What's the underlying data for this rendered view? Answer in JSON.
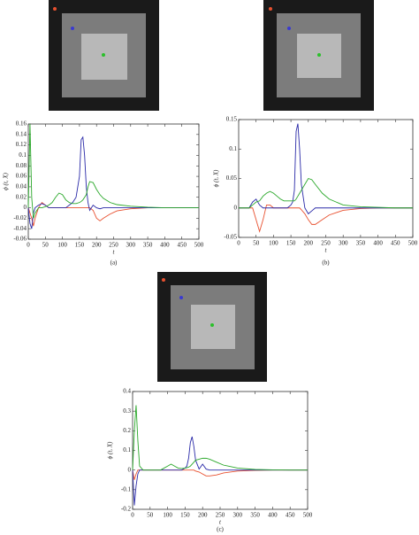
{
  "chart_data": [
    {
      "type": "line",
      "caption": "(a)",
      "x_label": "t",
      "y_label": "ϕ (t, X)",
      "x": [
        0,
        5,
        10,
        15,
        20,
        30,
        40,
        50,
        60,
        70,
        80,
        90,
        100,
        110,
        120,
        130,
        140,
        150,
        155,
        160,
        165,
        170,
        175,
        180,
        190,
        200,
        210,
        220,
        240,
        260,
        300,
        350,
        400,
        450,
        500
      ],
      "xlim": [
        0,
        500
      ],
      "xticks": [
        0,
        50,
        100,
        150,
        200,
        250,
        300,
        350,
        400,
        450,
        500
      ],
      "ylim": [
        -0.06,
        0.16
      ],
      "yticks": [
        -0.06,
        -0.04,
        -0.02,
        0,
        0.02,
        0.04,
        0.06,
        0.08,
        0.1,
        0.12,
        0.14,
        0.16
      ],
      "series": [
        {
          "color": "#e8502f",
          "values": [
            0,
            -0.01,
            -0.02,
            -0.035,
            -0.02,
            0,
            0.01,
            0.005,
            0,
            0,
            0,
            0,
            0,
            0,
            0,
            0,
            0,
            0,
            0,
            0,
            0,
            0,
            0,
            0,
            -0.005,
            -0.02,
            -0.025,
            -0.02,
            -0.012,
            -0.006,
            -0.002,
            0,
            0,
            0,
            0
          ]
        },
        {
          "color": "#2a2aa8",
          "values": [
            0,
            -0.03,
            -0.04,
            -0.01,
            0,
            0.005,
            0.008,
            0.005,
            0,
            0,
            0,
            0,
            0,
            0,
            0.005,
            0.01,
            0.02,
            0.06,
            0.13,
            0.135,
            0.1,
            0.04,
            0.01,
            -0.005,
            0.005,
            0,
            -0.002,
            0,
            0,
            0,
            0,
            0,
            0,
            0,
            0
          ]
        },
        {
          "color": "#2aa82a",
          "values": [
            0,
            0.16,
            0.02,
            -0.02,
            -0.01,
            0,
            0,
            0.002,
            0.005,
            0.01,
            0.02,
            0.028,
            0.025,
            0.015,
            0.01,
            0.008,
            0.008,
            0.01,
            0.012,
            0.015,
            0.02,
            0.025,
            0.04,
            0.05,
            0.048,
            0.035,
            0.025,
            0.018,
            0.01,
            0.006,
            0.003,
            0.001,
            0,
            0,
            0
          ]
        }
      ]
    },
    {
      "type": "line",
      "caption": "(b)",
      "x_label": "t",
      "y_label": "ϕ (t, X)",
      "x": [
        0,
        5,
        10,
        15,
        20,
        30,
        40,
        50,
        60,
        70,
        80,
        90,
        100,
        110,
        120,
        130,
        140,
        150,
        155,
        160,
        165,
        170,
        175,
        180,
        190,
        200,
        210,
        220,
        240,
        260,
        300,
        350,
        400,
        450,
        500
      ],
      "xlim": [
        0,
        500
      ],
      "xticks": [
        0,
        50,
        100,
        150,
        200,
        250,
        300,
        350,
        400,
        450,
        500
      ],
      "ylim": [
        -0.05,
        0.15
      ],
      "yticks": [
        -0.05,
        0,
        0.05,
        0.1,
        0.15
      ],
      "series": [
        {
          "color": "#e8502f",
          "values": [
            0,
            0,
            0,
            0,
            0,
            0,
            0,
            -0.02,
            -0.04,
            -0.02,
            0.005,
            0.005,
            0,
            0,
            0,
            0,
            0,
            0,
            0,
            0,
            0,
            0,
            0,
            -0.003,
            -0.01,
            -0.02,
            -0.028,
            -0.028,
            -0.02,
            -0.012,
            -0.004,
            -0.001,
            0,
            0,
            0
          ]
        },
        {
          "color": "#2a2aa8",
          "values": [
            0,
            0,
            0,
            0,
            0,
            0,
            0.01,
            0.015,
            0.005,
            0,
            0,
            0,
            0,
            0,
            0,
            0,
            0,
            0.005,
            0.01,
            0.03,
            0.13,
            0.143,
            0.1,
            0.04,
            0,
            -0.01,
            -0.005,
            0,
            0,
            0,
            0,
            0,
            0,
            0,
            0
          ]
        },
        {
          "color": "#2aa82a",
          "values": [
            0,
            0,
            0,
            0,
            0,
            0,
            0.005,
            0.01,
            0.012,
            0.02,
            0.025,
            0.028,
            0.025,
            0.02,
            0.015,
            0.012,
            0.012,
            0.012,
            0.012,
            0.012,
            0.015,
            0.02,
            0.025,
            0.03,
            0.04,
            0.05,
            0.048,
            0.04,
            0.025,
            0.015,
            0.005,
            0.002,
            0.001,
            0,
            0
          ]
        }
      ]
    },
    {
      "type": "line",
      "caption": "(c)",
      "x_label": "t",
      "y_label": "ϕ (t, X)",
      "x": [
        0,
        5,
        10,
        15,
        20,
        30,
        40,
        50,
        60,
        70,
        80,
        90,
        100,
        110,
        120,
        130,
        140,
        150,
        155,
        160,
        165,
        170,
        175,
        180,
        190,
        200,
        210,
        220,
        240,
        260,
        300,
        350,
        400,
        450,
        500
      ],
      "xlim": [
        0,
        500
      ],
      "xticks": [
        0,
        50,
        100,
        150,
        200,
        250,
        300,
        350,
        400,
        450,
        500
      ],
      "ylim": [
        -0.2,
        0.4
      ],
      "yticks": [
        -0.2,
        -0.1,
        0,
        0.1,
        0.2,
        0.3,
        0.4
      ],
      "series": [
        {
          "color": "#e8502f",
          "values": [
            0,
            -0.05,
            -0.02,
            0,
            0,
            0,
            0,
            0,
            0,
            0,
            0,
            0,
            0,
            0,
            0,
            0,
            0,
            0,
            0,
            0,
            0,
            0,
            0,
            -0.005,
            -0.01,
            -0.02,
            -0.03,
            -0.03,
            -0.025,
            -0.015,
            -0.005,
            -0.002,
            0,
            0,
            0
          ]
        },
        {
          "color": "#2a2aa8",
          "values": [
            0,
            -0.18,
            -0.08,
            -0.02,
            0,
            0,
            0,
            0,
            0,
            0,
            0,
            0,
            0,
            0,
            0,
            0,
            0,
            0.01,
            0.02,
            0.06,
            0.14,
            0.17,
            0.12,
            0.05,
            0.005,
            0.03,
            0.005,
            0,
            0,
            0,
            0,
            0,
            0,
            0,
            0
          ]
        },
        {
          "color": "#2aa82a",
          "values": [
            0,
            0.2,
            0.33,
            0.15,
            0.02,
            0,
            0,
            0,
            0,
            0,
            0,
            0.01,
            0.02,
            0.03,
            0.02,
            0.01,
            0.008,
            0.01,
            0.012,
            0.015,
            0.02,
            0.03,
            0.04,
            0.05,
            0.055,
            0.06,
            0.06,
            0.055,
            0.04,
            0.025,
            0.01,
            0.003,
            0.001,
            0,
            0
          ]
        }
      ]
    }
  ]
}
